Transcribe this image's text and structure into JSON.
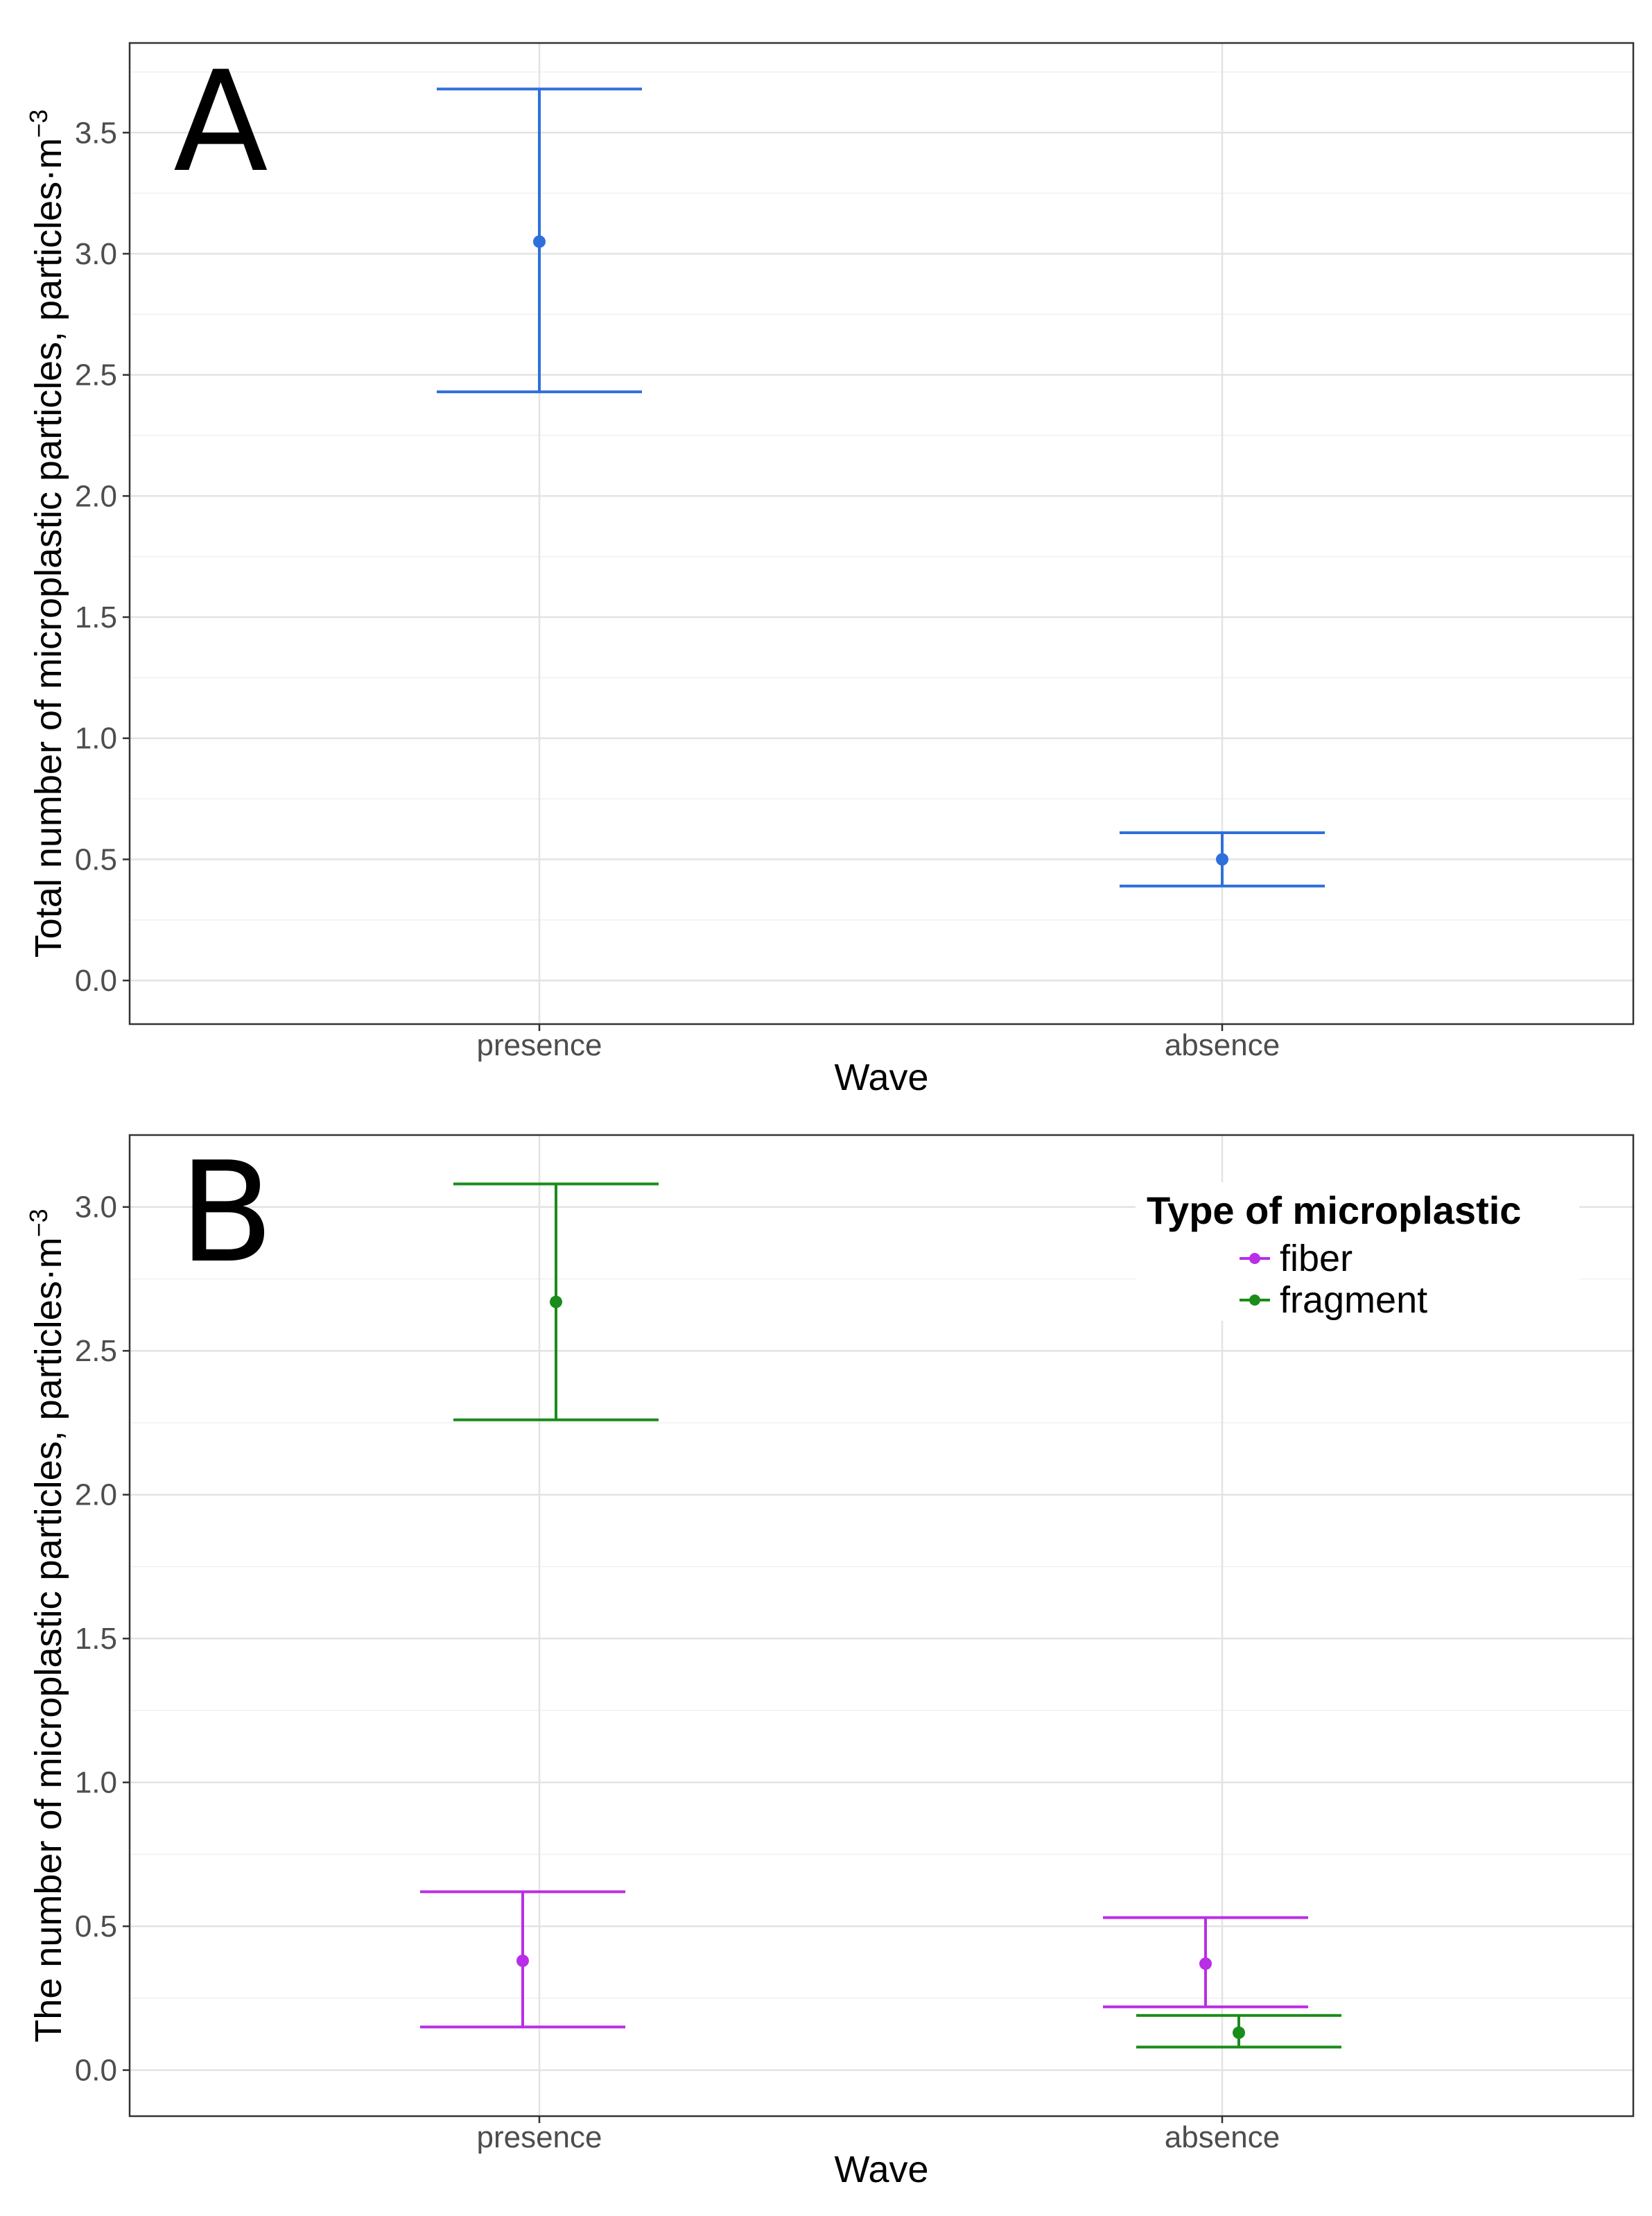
{
  "chart_data": [
    {
      "type": "errorbar",
      "panel_label": "A",
      "xlabel": "Wave",
      "ylabel": "Total number of microplastic particles, particles·m",
      "ylabel_superscript": "−3",
      "categories": [
        "presence",
        "absence"
      ],
      "ylim": [
        -0.18,
        3.87
      ],
      "yticks": [
        0.0,
        0.5,
        1.0,
        1.5,
        2.0,
        2.5,
        3.0,
        3.5
      ],
      "ytick_labels": [
        "0.0",
        "0.5",
        "1.0",
        "1.5",
        "2.0",
        "2.5",
        "3.0",
        "3.5"
      ],
      "grid": true,
      "series": [
        {
          "name": "total",
          "color": "#2e6fdc",
          "points": [
            {
              "category": "presence",
              "mean": 3.05,
              "lower": 2.43,
              "upper": 3.68
            },
            {
              "category": "absence",
              "mean": 0.5,
              "lower": 0.39,
              "upper": 0.61
            }
          ]
        }
      ]
    },
    {
      "type": "errorbar",
      "panel_label": "B",
      "xlabel": "Wave",
      "ylabel": "The number of microplastic particles, particles·m",
      "ylabel_superscript": "−3",
      "categories": [
        "presence",
        "absence"
      ],
      "ylim": [
        -0.16,
        3.25
      ],
      "yticks": [
        0.0,
        0.5,
        1.0,
        1.5,
        2.0,
        2.5,
        3.0
      ],
      "ytick_labels": [
        "0.0",
        "0.5",
        "1.0",
        "1.5",
        "2.0",
        "2.5",
        "3.0"
      ],
      "grid": true,
      "legend": {
        "title": "Type of microplastic",
        "position": "top-right"
      },
      "series": [
        {
          "name": "fiber",
          "color": "#b92ee6",
          "points": [
            {
              "category": "presence",
              "mean": 0.38,
              "lower": 0.15,
              "upper": 0.62
            },
            {
              "category": "absence",
              "mean": 0.37,
              "lower": 0.22,
              "upper": 0.53
            }
          ]
        },
        {
          "name": "fragment",
          "color": "#1a8c1a",
          "points": [
            {
              "category": "presence",
              "mean": 2.67,
              "lower": 2.26,
              "upper": 3.08
            },
            {
              "category": "absence",
              "mean": 0.13,
              "lower": 0.08,
              "upper": 0.19
            }
          ]
        }
      ]
    }
  ]
}
